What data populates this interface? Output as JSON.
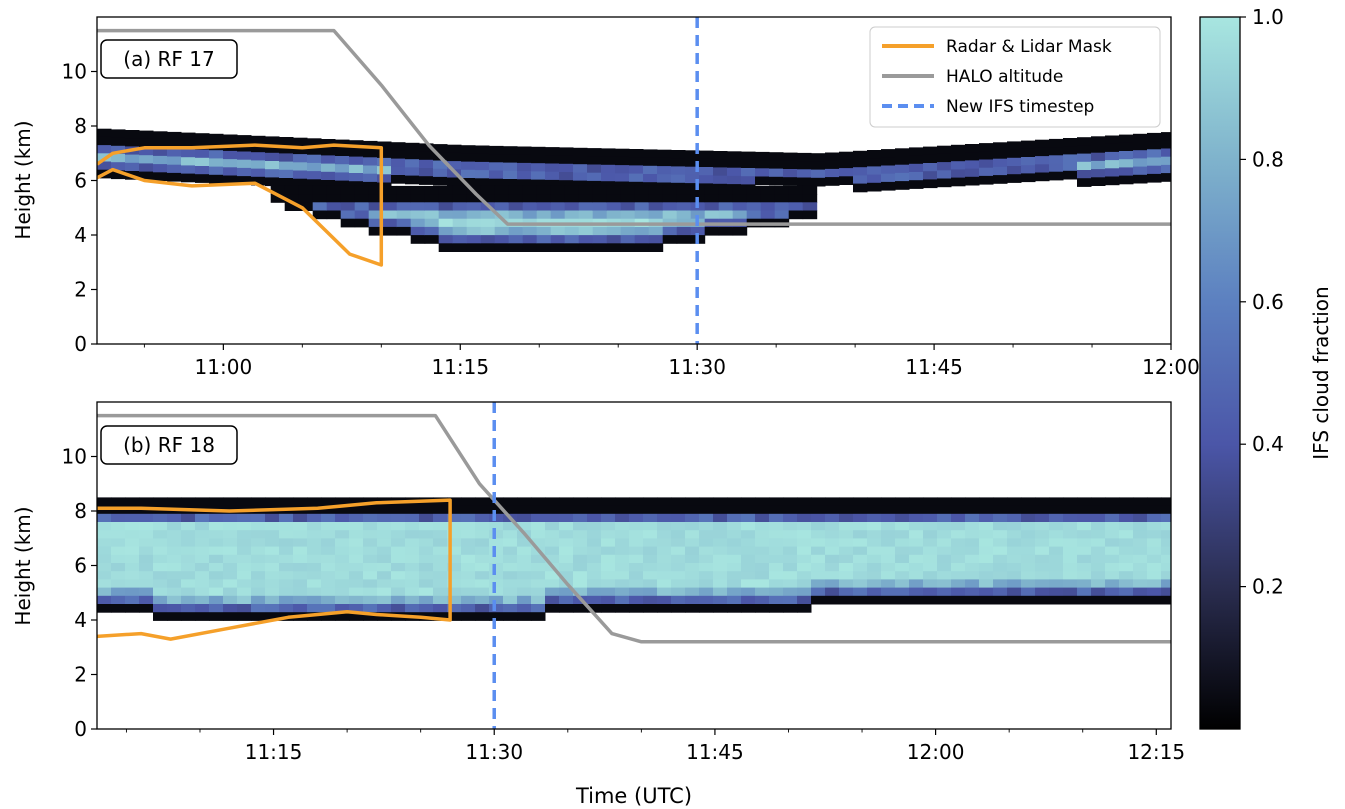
{
  "figure": {
    "xlabel": "Time (UTC)",
    "colorbar": {
      "label": "IFS cloud fraction",
      "ticks": [
        "0.2",
        "0.4",
        "0.6",
        "0.8",
        "1.0"
      ],
      "tick_values": [
        0.2,
        0.4,
        0.6,
        0.8,
        1.0
      ],
      "range": [
        0.0,
        1.0
      ],
      "colors": [
        "#000000",
        "#2a2d50",
        "#4b56a8",
        "#5c80c0",
        "#7fb3cc",
        "#a8e6e0"
      ]
    },
    "legend": {
      "placement": "top-right",
      "items": [
        {
          "label": "Radar & Lidar Mask",
          "color": "#f5a02a",
          "style": "solid"
        },
        {
          "label": "HALO altitude",
          "color": "#9a9a9a",
          "style": "solid"
        },
        {
          "label": "New IFS timestep",
          "color": "#5b8ef0",
          "style": "dashed"
        }
      ]
    }
  },
  "chart_data": [
    {
      "type": "heatmap",
      "panel_label": "(a) RF 17",
      "ylabel": "Height (km)",
      "xlabel": "",
      "xlim": [
        "10:52",
        "12:00"
      ],
      "ylim": [
        0,
        12
      ],
      "x_ticks": [
        "11:00",
        "11:15",
        "11:30",
        "11:45",
        "12:00"
      ],
      "y_ticks": [
        "0",
        "2",
        "4",
        "6",
        "8",
        "10"
      ],
      "new_ifs_timestep": "11:30",
      "cloud_layers": [
        {
          "name": "upper",
          "x_start": "10:52",
          "x_end": "12:00",
          "top_km": [
            7.9,
            7.3,
            7.0,
            7.8
          ],
          "core_km": [
            6.3,
            6.0,
            6.0,
            6.3
          ],
          "cloud_fraction_max": 1.0
        },
        {
          "name": "lower",
          "x_start": "11:03",
          "x_end": "11:37",
          "top_km": 5.8,
          "base_km": [
            5.2,
            3.5,
            3.5,
            4.8
          ],
          "cloud_fraction_max": 1.0
        }
      ],
      "series": [
        {
          "name": "HALO altitude",
          "x": [
            "10:52",
            "11:07",
            "11:10",
            "11:13",
            "11:16",
            "11:18",
            "12:00"
          ],
          "y": [
            11.5,
            11.5,
            9.5,
            7.3,
            5.5,
            4.4,
            4.4
          ]
        },
        {
          "name": "Radar & Lidar Mask",
          "x": [
            "10:52",
            "10:53",
            "10:55",
            "10:58",
            "11:02",
            "11:05",
            "11:08",
            "11:10",
            "11:10",
            "11:07",
            "11:05",
            "11:02",
            "10:58",
            "10:55",
            "10:53",
            "10:52"
          ],
          "y": [
            6.1,
            6.4,
            6.0,
            5.8,
            5.9,
            5.0,
            3.3,
            2.9,
            7.2,
            7.3,
            7.2,
            7.3,
            7.2,
            7.2,
            7.0,
            6.6
          ]
        }
      ]
    },
    {
      "type": "heatmap",
      "panel_label": "(b) RF 18",
      "ylabel": "Height (km)",
      "xlabel": "Time (UTC)",
      "xlim": [
        "11:03",
        "12:16"
      ],
      "ylim": [
        0,
        12
      ],
      "x_ticks": [
        "11:15",
        "11:30",
        "11:45",
        "12:00",
        "12:15"
      ],
      "y_ticks": [
        "0",
        "2",
        "4",
        "6",
        "8",
        "10"
      ],
      "new_ifs_timestep": "11:30",
      "cloud_layers": [
        {
          "name": "main",
          "x_start": "11:03",
          "x_end": "12:16",
          "top_km": 8.5,
          "base_km": [
            4.3,
            4.2,
            4.6,
            4.8
          ],
          "cloud_fraction_max": 1.0
        }
      ],
      "series": [
        {
          "name": "HALO altitude",
          "x": [
            "11:03",
            "11:26",
            "11:29",
            "11:32",
            "11:35",
            "11:38",
            "11:40",
            "12:16"
          ],
          "y": [
            11.5,
            11.5,
            9.0,
            7.2,
            5.3,
            3.5,
            3.2,
            3.2
          ]
        },
        {
          "name": "Radar & Lidar Mask",
          "x": [
            "11:03",
            "11:06",
            "11:08",
            "11:12",
            "11:16",
            "11:20",
            "11:22",
            "11:25",
            "11:27",
            "11:27",
            "11:22",
            "11:18",
            "11:12",
            "11:06",
            "11:03"
          ],
          "y": [
            3.4,
            3.5,
            3.3,
            3.7,
            4.1,
            4.3,
            4.2,
            4.1,
            4.0,
            8.4,
            8.3,
            8.1,
            8.0,
            8.1,
            8.1
          ]
        }
      ]
    }
  ]
}
